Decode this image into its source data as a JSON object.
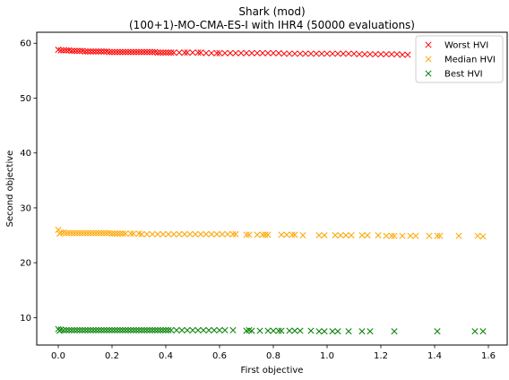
{
  "chart_data": {
    "type": "scatter",
    "title": "Shark (mod)",
    "subtitle": "(100+1)-MO-CMA-ES-I with IHR4 (50000 evaluations)",
    "xlabel": "First objective",
    "ylabel": "Second objective",
    "xlim": [
      -0.08,
      1.67
    ],
    "ylim": [
      5,
      62
    ],
    "xticks": [
      0.0,
      0.2,
      0.4,
      0.6,
      0.8,
      1.0,
      1.2,
      1.4,
      1.6
    ],
    "xtick_labels": [
      "0.0",
      "0.2",
      "0.4",
      "0.6",
      "0.8",
      "1.0",
      "1.2",
      "1.4",
      "1.6"
    ],
    "yticks": [
      10,
      20,
      30,
      40,
      50,
      60
    ],
    "ytick_labels": [
      "10",
      "20",
      "30",
      "40",
      "50",
      "60"
    ],
    "grid": false,
    "legend_position": "top-right",
    "series": [
      {
        "name": "Worst HVI",
        "color": "#ff0000",
        "marker": "x",
        "x": [
          0.0,
          0.01,
          0.02,
          0.03,
          0.04,
          0.05,
          0.06,
          0.07,
          0.08,
          0.09,
          0.1,
          0.11,
          0.12,
          0.13,
          0.14,
          0.15,
          0.16,
          0.17,
          0.18,
          0.19,
          0.2,
          0.21,
          0.22,
          0.23,
          0.24,
          0.25,
          0.26,
          0.27,
          0.28,
          0.29,
          0.3,
          0.31,
          0.32,
          0.33,
          0.34,
          0.35,
          0.36,
          0.37,
          0.38,
          0.39,
          0.4,
          0.41,
          0.42,
          0.43,
          0.45,
          0.47,
          0.48,
          0.5,
          0.52,
          0.53,
          0.55,
          0.57,
          0.59,
          0.6,
          0.62,
          0.64,
          0.66,
          0.68,
          0.7,
          0.72,
          0.74,
          0.76,
          0.78,
          0.8,
          0.82,
          0.84,
          0.86,
          0.88,
          0.9,
          0.92,
          0.94,
          0.96,
          0.98,
          1.0,
          1.02,
          1.04,
          1.06,
          1.08,
          1.1,
          1.12,
          1.14,
          1.16,
          1.18,
          1.2,
          1.22,
          1.24,
          1.26,
          1.28,
          1.3
        ],
        "y": [
          58.8,
          58.7,
          58.7,
          58.7,
          58.7,
          58.6,
          58.6,
          58.6,
          58.6,
          58.6,
          58.5,
          58.5,
          58.5,
          58.5,
          58.5,
          58.5,
          58.5,
          58.5,
          58.5,
          58.4,
          58.4,
          58.4,
          58.4,
          58.4,
          58.4,
          58.4,
          58.4,
          58.4,
          58.4,
          58.4,
          58.4,
          58.4,
          58.4,
          58.4,
          58.4,
          58.4,
          58.4,
          58.3,
          58.3,
          58.3,
          58.3,
          58.3,
          58.3,
          58.3,
          58.3,
          58.3,
          58.3,
          58.3,
          58.3,
          58.3,
          58.2,
          58.2,
          58.2,
          58.2,
          58.2,
          58.2,
          58.2,
          58.2,
          58.2,
          58.2,
          58.2,
          58.2,
          58.2,
          58.2,
          58.2,
          58.1,
          58.1,
          58.1,
          58.1,
          58.1,
          58.1,
          58.1,
          58.1,
          58.1,
          58.1,
          58.1,
          58.1,
          58.1,
          58.1,
          58.0,
          58.0,
          58.0,
          58.0,
          58.0,
          58.0,
          58.0,
          58.0,
          57.9,
          57.9
        ]
      },
      {
        "name": "Median HVI",
        "color": "#ffa500",
        "marker": "x",
        "x": [
          0.0,
          0.005,
          0.01,
          0.02,
          0.03,
          0.04,
          0.05,
          0.06,
          0.07,
          0.08,
          0.09,
          0.1,
          0.11,
          0.12,
          0.13,
          0.14,
          0.15,
          0.16,
          0.17,
          0.18,
          0.19,
          0.2,
          0.21,
          0.22,
          0.23,
          0.24,
          0.25,
          0.27,
          0.28,
          0.3,
          0.31,
          0.33,
          0.35,
          0.37,
          0.39,
          0.41,
          0.43,
          0.45,
          0.47,
          0.49,
          0.51,
          0.53,
          0.55,
          0.57,
          0.59,
          0.61,
          0.63,
          0.65,
          0.66,
          0.7,
          0.71,
          0.74,
          0.76,
          0.77,
          0.78,
          0.83,
          0.85,
          0.87,
          0.88,
          0.91,
          0.97,
          0.99,
          1.03,
          1.05,
          1.07,
          1.09,
          1.13,
          1.15,
          1.19,
          1.22,
          1.24,
          1.25,
          1.28,
          1.31,
          1.33,
          1.38,
          1.41,
          1.42,
          1.49,
          1.56,
          1.58
        ],
        "y": [
          26.0,
          25.3,
          25.5,
          25.5,
          25.4,
          25.4,
          25.4,
          25.4,
          25.4,
          25.4,
          25.4,
          25.4,
          25.4,
          25.4,
          25.4,
          25.4,
          25.4,
          25.4,
          25.4,
          25.4,
          25.4,
          25.3,
          25.3,
          25.3,
          25.3,
          25.3,
          25.3,
          25.3,
          25.3,
          25.3,
          25.2,
          25.2,
          25.2,
          25.2,
          25.2,
          25.2,
          25.2,
          25.2,
          25.2,
          25.2,
          25.2,
          25.2,
          25.2,
          25.2,
          25.2,
          25.2,
          25.2,
          25.2,
          25.2,
          25.1,
          25.1,
          25.1,
          25.1,
          25.1,
          25.1,
          25.1,
          25.1,
          25.1,
          25.1,
          25.0,
          25.0,
          25.0,
          25.0,
          25.0,
          25.0,
          25.0,
          25.0,
          25.0,
          25.0,
          24.9,
          24.9,
          24.9,
          24.9,
          24.9,
          24.9,
          24.9,
          24.9,
          24.9,
          24.9,
          24.9,
          24.8
        ]
      },
      {
        "name": "Best HVI",
        "color": "#008000",
        "marker": "x",
        "x": [
          0.0,
          0.005,
          0.01,
          0.02,
          0.03,
          0.04,
          0.05,
          0.06,
          0.07,
          0.08,
          0.09,
          0.1,
          0.11,
          0.12,
          0.13,
          0.14,
          0.15,
          0.16,
          0.17,
          0.18,
          0.19,
          0.2,
          0.21,
          0.22,
          0.23,
          0.24,
          0.25,
          0.26,
          0.27,
          0.28,
          0.29,
          0.3,
          0.31,
          0.32,
          0.33,
          0.34,
          0.35,
          0.36,
          0.37,
          0.38,
          0.39,
          0.4,
          0.41,
          0.42,
          0.44,
          0.46,
          0.48,
          0.5,
          0.52,
          0.54,
          0.56,
          0.58,
          0.6,
          0.62,
          0.65,
          0.7,
          0.71,
          0.72,
          0.75,
          0.78,
          0.8,
          0.82,
          0.83,
          0.86,
          0.88,
          0.9,
          0.94,
          0.97,
          0.99,
          1.02,
          1.04,
          1.08,
          1.13,
          1.16,
          1.25,
          1.41,
          1.55,
          1.58
        ],
        "y": [
          7.9,
          7.6,
          7.8,
          7.7,
          7.7,
          7.7,
          7.7,
          7.7,
          7.7,
          7.7,
          7.7,
          7.7,
          7.7,
          7.7,
          7.7,
          7.7,
          7.7,
          7.7,
          7.7,
          7.7,
          7.7,
          7.7,
          7.7,
          7.7,
          7.7,
          7.7,
          7.7,
          7.7,
          7.7,
          7.7,
          7.7,
          7.7,
          7.7,
          7.7,
          7.7,
          7.7,
          7.7,
          7.7,
          7.7,
          7.7,
          7.7,
          7.7,
          7.7,
          7.7,
          7.7,
          7.7,
          7.7,
          7.7,
          7.7,
          7.7,
          7.7,
          7.7,
          7.7,
          7.7,
          7.7,
          7.6,
          7.7,
          7.6,
          7.6,
          7.6,
          7.6,
          7.6,
          7.6,
          7.6,
          7.6,
          7.6,
          7.6,
          7.5,
          7.5,
          7.5,
          7.5,
          7.5,
          7.5,
          7.5,
          7.5,
          7.5,
          7.5,
          7.5
        ]
      }
    ]
  }
}
